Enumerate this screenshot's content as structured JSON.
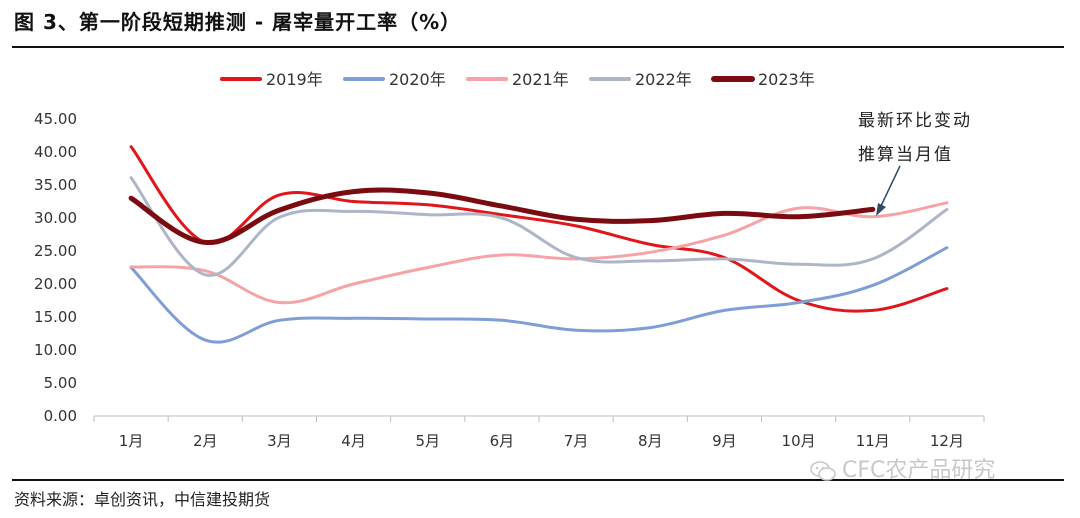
{
  "header": {
    "title": "图 3、第一阶段短期推测 - 屠宰量开工率（%）"
  },
  "footer": {
    "source": "资料来源：卓创资讯，中信建投期货",
    "watermark": "CFC农产品研究"
  },
  "annotation": {
    "line1": "最新环比变动",
    "line2": "推算当月值"
  },
  "chart_data": {
    "type": "line",
    "title": "屠宰量开工率（%）",
    "categories": [
      "1月",
      "2月",
      "3月",
      "4月",
      "5月",
      "6月",
      "7月",
      "8月",
      "9月",
      "10月",
      "11月",
      "12月"
    ],
    "ylim": [
      0,
      45
    ],
    "yticks": [
      "0.00",
      "5.00",
      "10.00",
      "15.00",
      "20.00",
      "25.00",
      "30.00",
      "35.00",
      "40.00",
      "45.00"
    ],
    "legend_position": "top",
    "grid": false,
    "series": [
      {
        "name": "2019年",
        "color": "#e0161b",
        "width": 3,
        "values": [
          40.8,
          26.3,
          33.5,
          32.5,
          32.0,
          30.5,
          28.8,
          26.0,
          24.0,
          17.5,
          16.0,
          19.3
        ]
      },
      {
        "name": "2020年",
        "color": "#7f9ed6",
        "width": 3,
        "values": [
          22.5,
          11.5,
          14.5,
          14.8,
          14.7,
          14.5,
          13.0,
          13.4,
          16.0,
          17.2,
          19.8,
          25.5
        ]
      },
      {
        "name": "2021年",
        "color": "#f5a3a6",
        "width": 3,
        "values": [
          22.6,
          22.0,
          17.2,
          20.0,
          22.5,
          24.4,
          23.8,
          24.8,
          27.4,
          31.5,
          30.2,
          32.3
        ]
      },
      {
        "name": "2022年",
        "color": "#aeb5c6",
        "width": 3,
        "values": [
          36.1,
          21.4,
          30.1,
          31.0,
          30.5,
          30.0,
          24.0,
          23.5,
          23.8,
          23.0,
          23.8,
          31.3
        ]
      },
      {
        "name": "2023年",
        "color": "#7a0b10",
        "width": 5,
        "values": [
          33.0,
          26.3,
          31.2,
          34.0,
          33.8,
          31.8,
          29.8,
          29.6,
          30.7,
          30.2,
          31.3,
          null
        ]
      }
    ]
  }
}
